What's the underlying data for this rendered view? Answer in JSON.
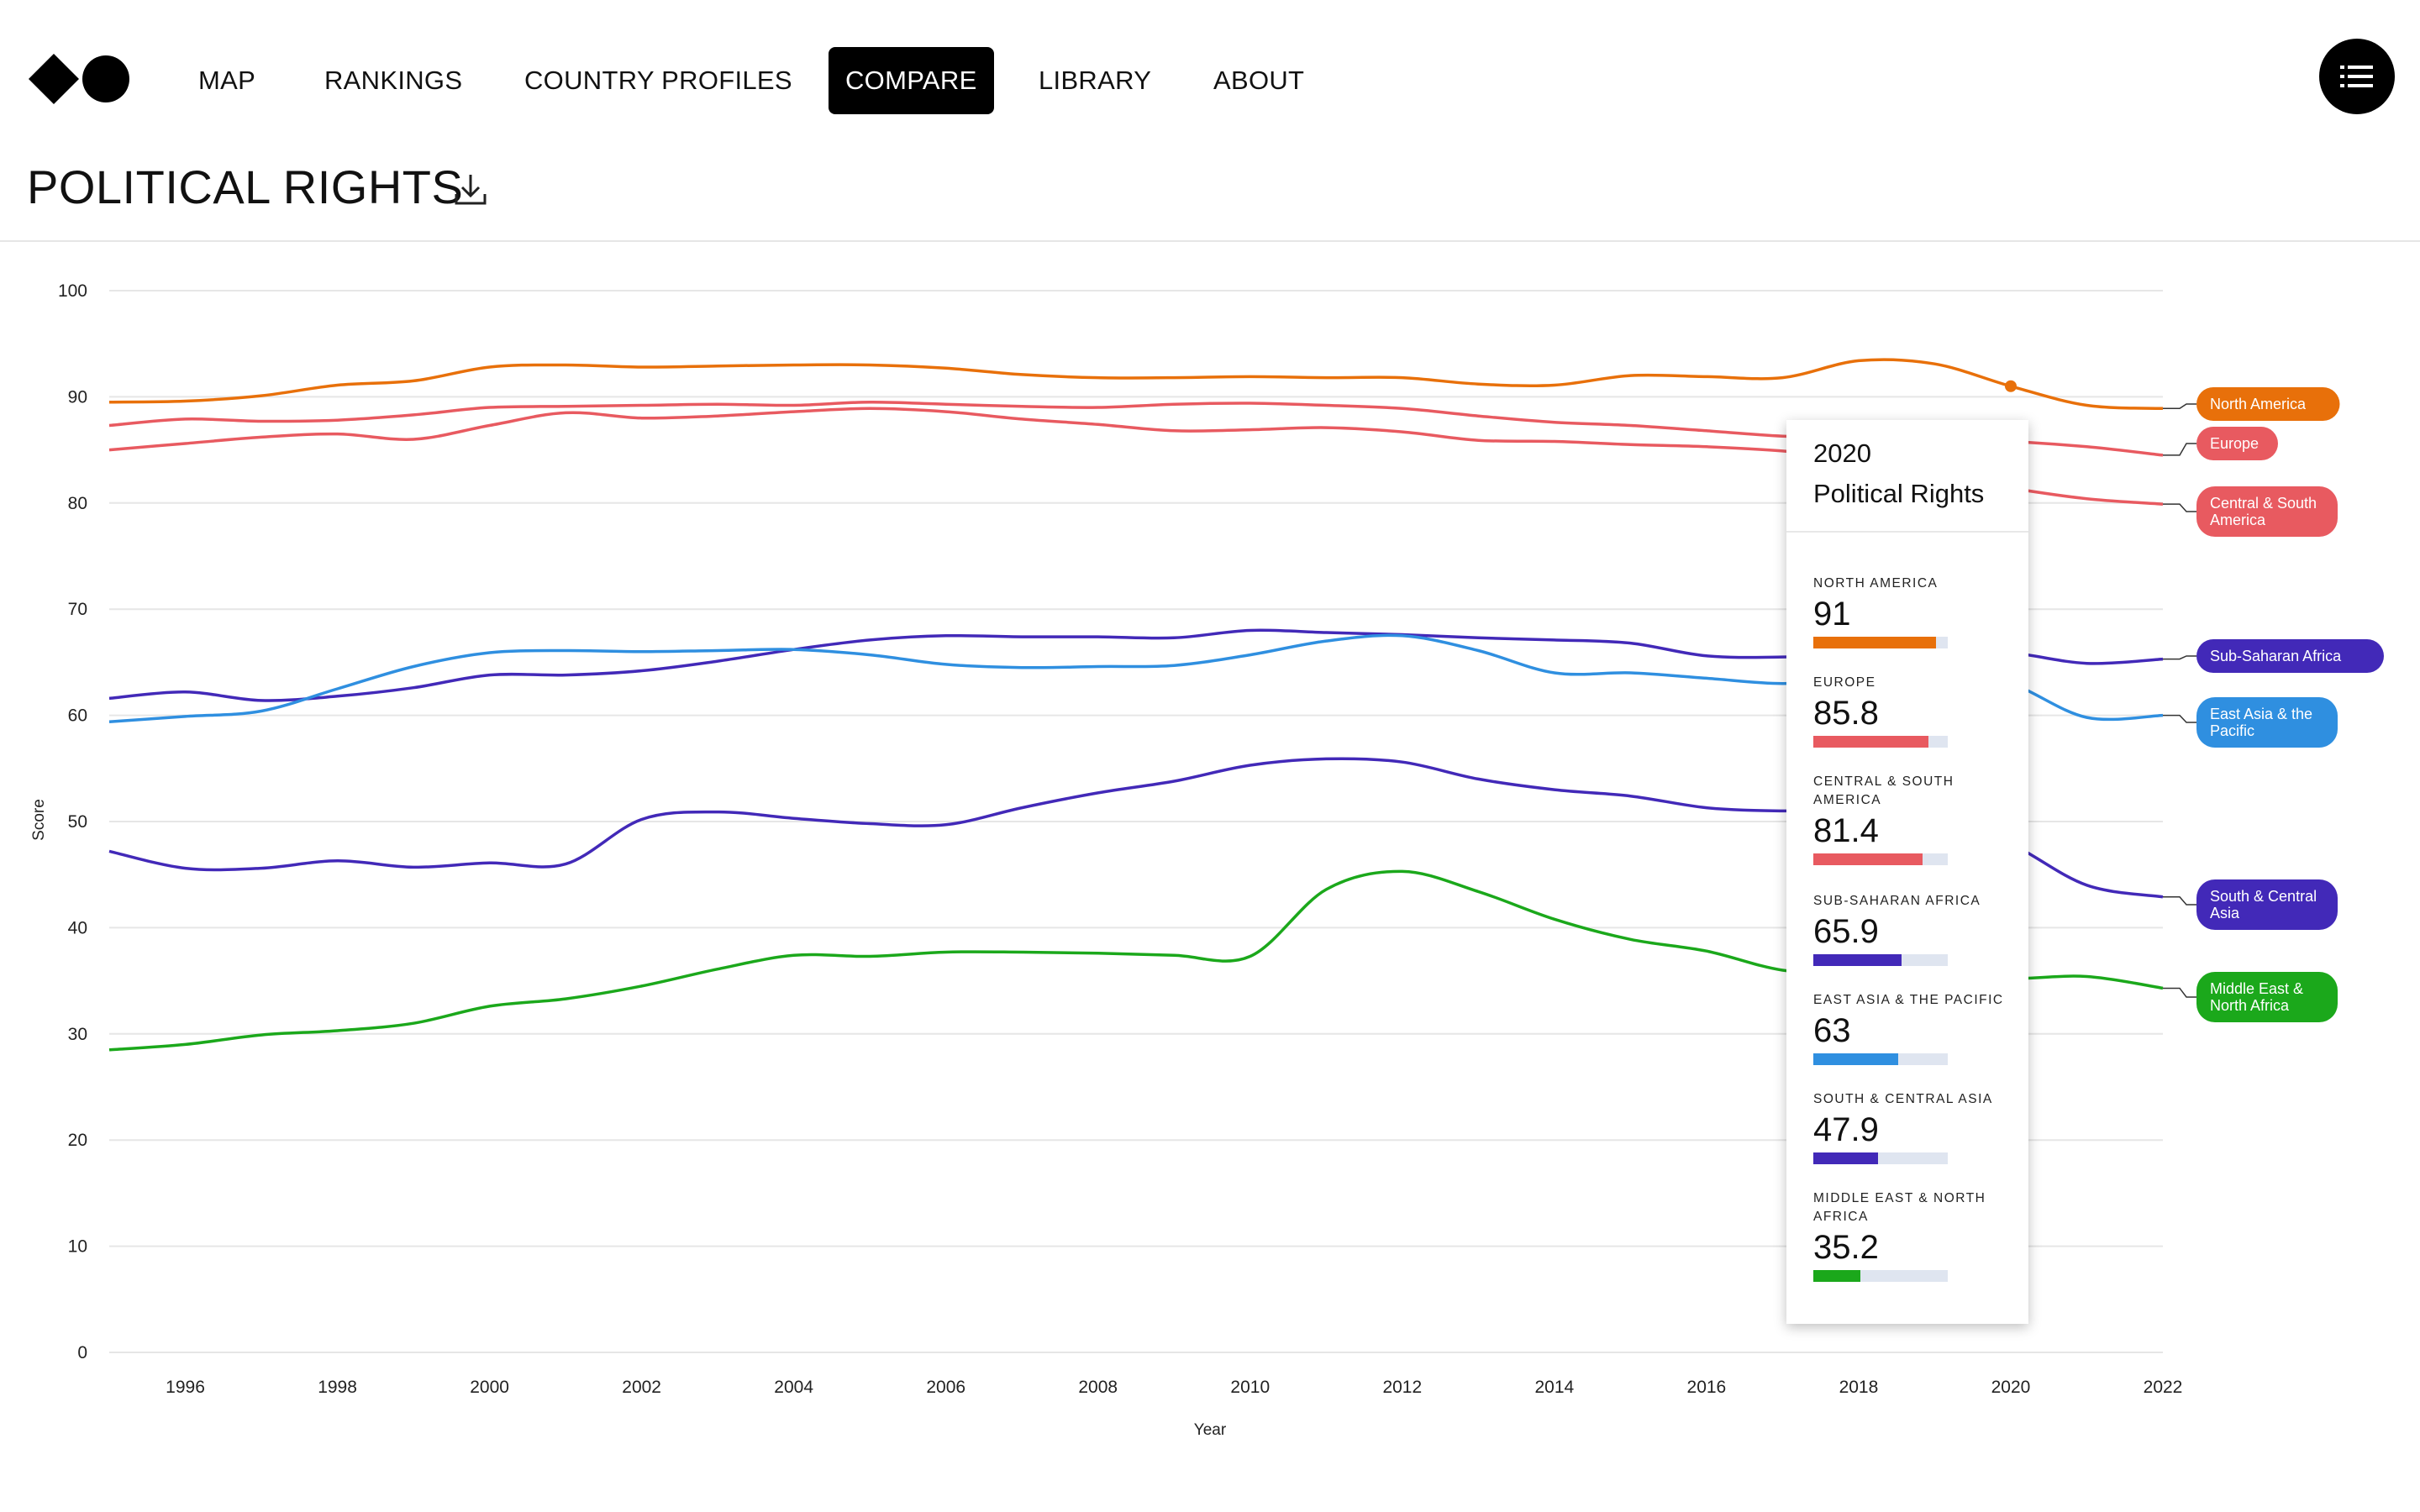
{
  "nav": {
    "items": [
      {
        "label": "MAP",
        "active": false
      },
      {
        "label": "RANKINGS",
        "active": false
      },
      {
        "label": "COUNTRY PROFILES",
        "active": false
      },
      {
        "label": "COMPARE",
        "active": true
      },
      {
        "label": "LIBRARY",
        "active": false
      },
      {
        "label": "ABOUT",
        "active": false
      }
    ],
    "menu_icon": "list-menu-icon",
    "logo_icon": "diamond-circle-logo"
  },
  "page": {
    "title": "POLITICAL RIGHTS",
    "download_icon": "download-icon"
  },
  "tooltip": {
    "year": "2020",
    "metric": "Political Rights",
    "items": [
      {
        "name": "North America",
        "value": "91",
        "color": "#E8700A"
      },
      {
        "name": "Europe",
        "value": "85.8",
        "color": "#E85A60"
      },
      {
        "name": "Central & South America",
        "value": "81.4",
        "color": "#E85A60"
      },
      {
        "name": "Sub-Saharan Africa",
        "value": "65.9",
        "color": "#4229B8"
      },
      {
        "name": "East Asia & the Pacific",
        "value": "63",
        "color": "#2F8FE0"
      },
      {
        "name": "South & Central Asia",
        "value": "47.9",
        "color": "#4229B8"
      },
      {
        "name": "Middle East & North Africa",
        "value": "35.2",
        "color": "#1BA81B"
      }
    ]
  },
  "chart_data": {
    "type": "line",
    "xlabel": "Year",
    "ylabel": "Score",
    "ylim": [
      0,
      100
    ],
    "yticks": [
      0,
      10,
      20,
      30,
      40,
      50,
      60,
      70,
      80,
      90,
      100
    ],
    "xticks": [
      1996,
      1998,
      2000,
      2002,
      2004,
      2006,
      2008,
      2010,
      2012,
      2014,
      2016,
      2018,
      2020,
      2022
    ],
    "x": [
      1995,
      1996,
      1997,
      1998,
      1999,
      2000,
      2001,
      2002,
      2003,
      2004,
      2005,
      2006,
      2007,
      2008,
      2009,
      2010,
      2011,
      2012,
      2013,
      2014,
      2015,
      2016,
      2017,
      2018,
      2019,
      2020,
      2021,
      2022
    ],
    "grid": true,
    "legend": "right, labels at line ends",
    "highlight_year": 2020,
    "series": [
      {
        "name": "North America",
        "color": "#E8700A",
        "values": [
          89.5,
          89.6,
          90.1,
          91.1,
          91.5,
          92.8,
          93.0,
          92.8,
          92.9,
          93.0,
          93.0,
          92.7,
          92.1,
          91.8,
          91.8,
          91.9,
          91.8,
          91.8,
          91.2,
          91.1,
          92.0,
          91.9,
          91.8,
          93.4,
          93.1,
          91.0,
          89.2,
          88.9
        ]
      },
      {
        "name": "Europe",
        "color": "#E85A60",
        "values": [
          87.3,
          87.9,
          87.7,
          87.8,
          88.3,
          89.0,
          89.1,
          89.2,
          89.3,
          89.2,
          89.5,
          89.3,
          89.1,
          89.0,
          89.3,
          89.4,
          89.2,
          88.9,
          88.2,
          87.6,
          87.3,
          86.8,
          86.3,
          86.1,
          86.0,
          85.8,
          85.3,
          84.5
        ]
      },
      {
        "name": "Central & South America",
        "color": "#E85A60",
        "values": [
          85.0,
          85.6,
          86.2,
          86.5,
          86.0,
          87.3,
          88.5,
          88.0,
          88.2,
          88.6,
          88.9,
          88.6,
          87.9,
          87.4,
          86.8,
          86.9,
          87.1,
          86.7,
          85.9,
          85.8,
          85.5,
          85.3,
          84.9,
          84.2,
          82.6,
          81.4,
          80.4,
          79.9
        ]
      },
      {
        "name": "Sub-Saharan Africa",
        "color": "#4229B8",
        "values": [
          61.6,
          62.2,
          61.4,
          61.8,
          62.6,
          63.8,
          63.8,
          64.2,
          65.1,
          66.2,
          67.1,
          67.5,
          67.4,
          67.4,
          67.3,
          68.0,
          67.8,
          67.6,
          67.3,
          67.1,
          66.8,
          65.6,
          65.5,
          65.8,
          66.2,
          65.9,
          64.9,
          65.3
        ]
      },
      {
        "name": "East Asia & the Pacific",
        "color": "#2F8FE0",
        "values": [
          59.4,
          59.9,
          60.4,
          62.5,
          64.6,
          65.9,
          66.1,
          66.0,
          66.1,
          66.2,
          65.7,
          64.8,
          64.5,
          64.6,
          64.7,
          65.7,
          67.0,
          67.5,
          66.1,
          64.0,
          64.0,
          63.5,
          63.0,
          63.5,
          64.5,
          63.0,
          59.8,
          60.0
        ]
      },
      {
        "name": "South & Central Asia",
        "color": "#4229B8",
        "values": [
          47.2,
          45.6,
          45.6,
          46.3,
          45.7,
          46.1,
          46.0,
          50.2,
          50.9,
          50.3,
          49.8,
          49.7,
          51.3,
          52.7,
          53.8,
          55.3,
          55.9,
          55.6,
          54.0,
          53.0,
          52.4,
          51.3,
          51.0,
          51.1,
          50.6,
          47.9,
          44.0,
          42.9
        ]
      },
      {
        "name": "Middle East & North Africa",
        "color": "#1BA81B",
        "values": [
          28.5,
          29.0,
          29.9,
          30.3,
          31.0,
          32.6,
          33.3,
          34.5,
          36.1,
          37.4,
          37.3,
          37.7,
          37.7,
          37.6,
          37.4,
          37.3,
          43.6,
          45.3,
          43.4,
          40.8,
          38.9,
          37.8,
          36.0,
          35.7,
          35.4,
          35.2,
          35.4,
          34.3
        ]
      }
    ],
    "line_labels": [
      {
        "series": "North America",
        "text": "North America",
        "color": "#E8700A"
      },
      {
        "series": "Europe",
        "text": "Europe",
        "color": "#E85A60"
      },
      {
        "series": "Central & South America",
        "text": "Central & South America",
        "color": "#E85A60"
      },
      {
        "series": "Sub-Saharan Africa",
        "text": "Sub-Saharan Africa",
        "color": "#4229B8"
      },
      {
        "series": "East Asia & the Pacific",
        "text": "East Asia & the Pacific",
        "color": "#2F8FE0"
      },
      {
        "series": "South & Central Asia",
        "text": "South & Central Asia",
        "color": "#4229B8"
      },
      {
        "series": "Middle East & North Africa",
        "text": "Middle East & North Africa",
        "color": "#1BA81B"
      }
    ]
  }
}
